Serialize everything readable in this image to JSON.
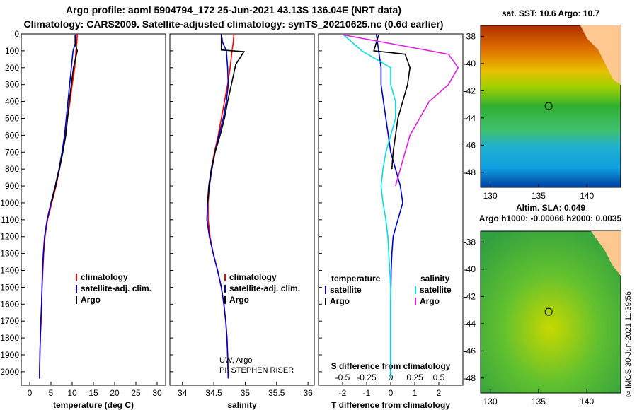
{
  "header": {
    "title_line1": "Argo profile: aoml 5904794_172 25-Jun-2021 43.13S 136.04E (NRT data)",
    "title_line2": "Climatology: CARS2009. Satellite-adjusted climatology: synTS_20210625.nc (0.6d earlier)"
  },
  "maps": {
    "sst_title": "sat. SST: 10.6 Argo: 10.7",
    "sla_title1": "Altim. SLA: 0.049",
    "sla_title2": "Argo h1000: -0.00066 h2000: 0.0035",
    "lat_ticks": [
      "-38",
      "-40",
      "-42",
      "-44",
      "-46",
      "-48"
    ],
    "lon_ticks": [
      "130",
      "135",
      "140"
    ],
    "float_lon": 136.04,
    "float_lat": -43.13
  },
  "credit": "©IMOS 30-Jun-2021 11:39:56",
  "colors": {
    "climatology": "#ff0000",
    "satellite": "#0000cc",
    "argo": "#000000",
    "sat_s": "#00e0e0",
    "argo_s": "#e020e0"
  },
  "chart_data": [
    {
      "type": "line",
      "panel": "temperature",
      "xlabel": "temperature (deg C)",
      "ylabel": "pressure",
      "xlim": [
        -2,
        32
      ],
      "ylim": [
        2080,
        0
      ],
      "x_ticks": [
        "0",
        "5",
        "10",
        "15",
        "20",
        "25",
        "30"
      ],
      "y_ticks": [
        "0",
        "100",
        "200",
        "300",
        "400",
        "500",
        "600",
        "700",
        "800",
        "900",
        "1000",
        "1100",
        "1200",
        "1300",
        "1400",
        "1500",
        "1600",
        "1700",
        "1800",
        "1900",
        "2000"
      ],
      "legend": [
        "climatology",
        "satellite-adj. clim.",
        "Argo"
      ],
      "series": [
        {
          "name": "climatology",
          "color": "#ff0000",
          "x": [
            11.2,
            11.1,
            10.9,
            10.6,
            10.0,
            9.5,
            8.9,
            8.4,
            7.7,
            7.0,
            6.2,
            5.2,
            4.2,
            3.6,
            3.3,
            3.1,
            2.9,
            2.8,
            2.7,
            2.5,
            2.4,
            2.3
          ],
          "y": [
            0,
            50,
            100,
            200,
            300,
            400,
            500,
            600,
            700,
            800,
            900,
            1000,
            1100,
            1200,
            1300,
            1400,
            1500,
            1600,
            1700,
            1800,
            1900,
            2040
          ]
        },
        {
          "name": "satellite-adj. clim.",
          "color": "#0000cc",
          "x": [
            10.9,
            10.8,
            10.2,
            9.8,
            9.4,
            9.0,
            8.6,
            8.2,
            7.6,
            6.9,
            6.0,
            5.0,
            4.1,
            3.5,
            3.2,
            3.0,
            2.9,
            2.8,
            2.6,
            2.5,
            2.4,
            2.3
          ],
          "y": [
            0,
            50,
            100,
            200,
            300,
            400,
            500,
            600,
            700,
            800,
            900,
            1000,
            1100,
            1200,
            1300,
            1400,
            1500,
            1600,
            1700,
            1800,
            1900,
            2040
          ]
        },
        {
          "name": "Argo",
          "color": "#000000",
          "x": [
            10.7,
            10.7,
            11.2,
            10.3,
            9.8,
            9.3,
            8.9,
            8.5,
            7.8,
            7.0,
            6.1,
            5.1
          ],
          "y": [
            5,
            60,
            100,
            200,
            300,
            400,
            500,
            600,
            700,
            800,
            900,
            1000
          ]
        }
      ]
    },
    {
      "type": "line",
      "panel": "salinity",
      "xlabel": "salinity",
      "xlim": [
        33.8,
        36.1
      ],
      "ylim": [
        2080,
        0
      ],
      "x_ticks": [
        "34",
        "34.5",
        "35",
        "35.5",
        "36"
      ],
      "legend": [
        "climatology",
        "satellite-adj. clim.",
        "Argo"
      ],
      "annotations": [
        "UW, Argo",
        "PI: STEPHEN RISER"
      ],
      "series": [
        {
          "name": "climatology",
          "color": "#ff0000",
          "x": [
            34.82,
            34.81,
            34.79,
            34.76,
            34.72,
            34.67,
            34.62,
            34.57,
            34.51,
            34.46,
            34.43,
            34.41,
            34.41,
            34.44,
            34.49,
            34.56,
            34.62,
            34.66,
            34.69,
            34.71,
            34.72,
            34.73
          ],
          "y": [
            0,
            50,
            100,
            200,
            300,
            400,
            500,
            600,
            700,
            800,
            900,
            1000,
            1100,
            1200,
            1300,
            1400,
            1500,
            1600,
            1700,
            1800,
            1900,
            2040
          ]
        },
        {
          "name": "satellite-adj. clim.",
          "color": "#0000cc",
          "x": [
            34.62,
            34.64,
            34.7,
            34.72,
            34.73,
            34.7,
            34.65,
            34.58,
            34.52,
            34.47,
            34.43,
            34.4,
            34.39,
            34.43,
            34.49,
            34.56,
            34.62,
            34.66,
            34.69,
            34.71,
            34.72,
            34.73
          ],
          "y": [
            0,
            50,
            100,
            200,
            300,
            400,
            500,
            600,
            700,
            800,
            900,
            1000,
            1100,
            1200,
            1300,
            1400,
            1500,
            1600,
            1700,
            1800,
            1900,
            2040
          ]
        },
        {
          "name": "Argo",
          "color": "#000000",
          "x": [
            34.62,
            34.62,
            34.98,
            34.85,
            34.78,
            34.72,
            34.67,
            34.6,
            34.52,
            34.46,
            34.42,
            34.4
          ],
          "y": [
            5,
            95,
            105,
            180,
            300,
            400,
            500,
            600,
            700,
            800,
            900,
            1000
          ]
        }
      ]
    },
    {
      "type": "line",
      "panel": "difference",
      "xlabel": "T difference from climatology",
      "x2label": "S difference from climatology",
      "xlim": [
        -3,
        3
      ],
      "ylim": [
        2080,
        0
      ],
      "x_ticks": [
        "-2",
        "-1",
        "0",
        "1",
        "2"
      ],
      "x2_ticks": [
        "-0.5",
        "-0.25",
        "0",
        "0.25",
        "0.5"
      ],
      "legend_titles": [
        "temperature",
        "salinity"
      ],
      "legend": [
        "satellite",
        "Argo",
        "satellite",
        "Argo"
      ],
      "series": [
        {
          "name": "T satellite",
          "color": "#0000cc",
          "x": [
            -0.6,
            -0.5,
            -0.4,
            -0.4,
            -0.3,
            -0.2,
            -0.1,
            0,
            0.2,
            0.4,
            0.5,
            0.3,
            0.1,
            0.05,
            0.02,
            0.01,
            0,
            0,
            0,
            0
          ],
          "y": [
            0,
            100,
            200,
            300,
            400,
            500,
            600,
            700,
            800,
            900,
            1000,
            1100,
            1200,
            1300,
            1400,
            1500,
            1600,
            1800,
            2000,
            2040
          ]
        },
        {
          "name": "T Argo",
          "color": "#000000",
          "x": [
            -0.5,
            -0.7,
            0.6,
            0.8,
            0.7,
            0.5,
            0.3,
            0.2,
            0.1,
            0.05
          ],
          "y": [
            5,
            100,
            120,
            200,
            300,
            400,
            500,
            600,
            700,
            800
          ]
        },
        {
          "name": "S satellite",
          "color": "#00e0e0",
          "x": [
            -0.5,
            -0.3,
            0,
            0,
            0.05,
            0.05,
            0,
            -0.05,
            -0.08,
            -0.1,
            -0.08,
            -0.05,
            -0.03,
            -0.02,
            0,
            0,
            0
          ],
          "y": [
            0,
            100,
            200,
            300,
            400,
            500,
            600,
            700,
            800,
            900,
            1000,
            1100,
            1200,
            1300,
            1500,
            1800,
            2040
          ]
        },
        {
          "name": "S Argo",
          "color": "#e020e0",
          "x": [
            -0.5,
            0.6,
            0.7,
            0.6,
            0.4,
            0.3,
            0.2,
            0.15,
            0.1,
            0.05
          ],
          "y": [
            5,
            120,
            200,
            300,
            400,
            500,
            600,
            700,
            800,
            900
          ]
        }
      ]
    }
  ]
}
